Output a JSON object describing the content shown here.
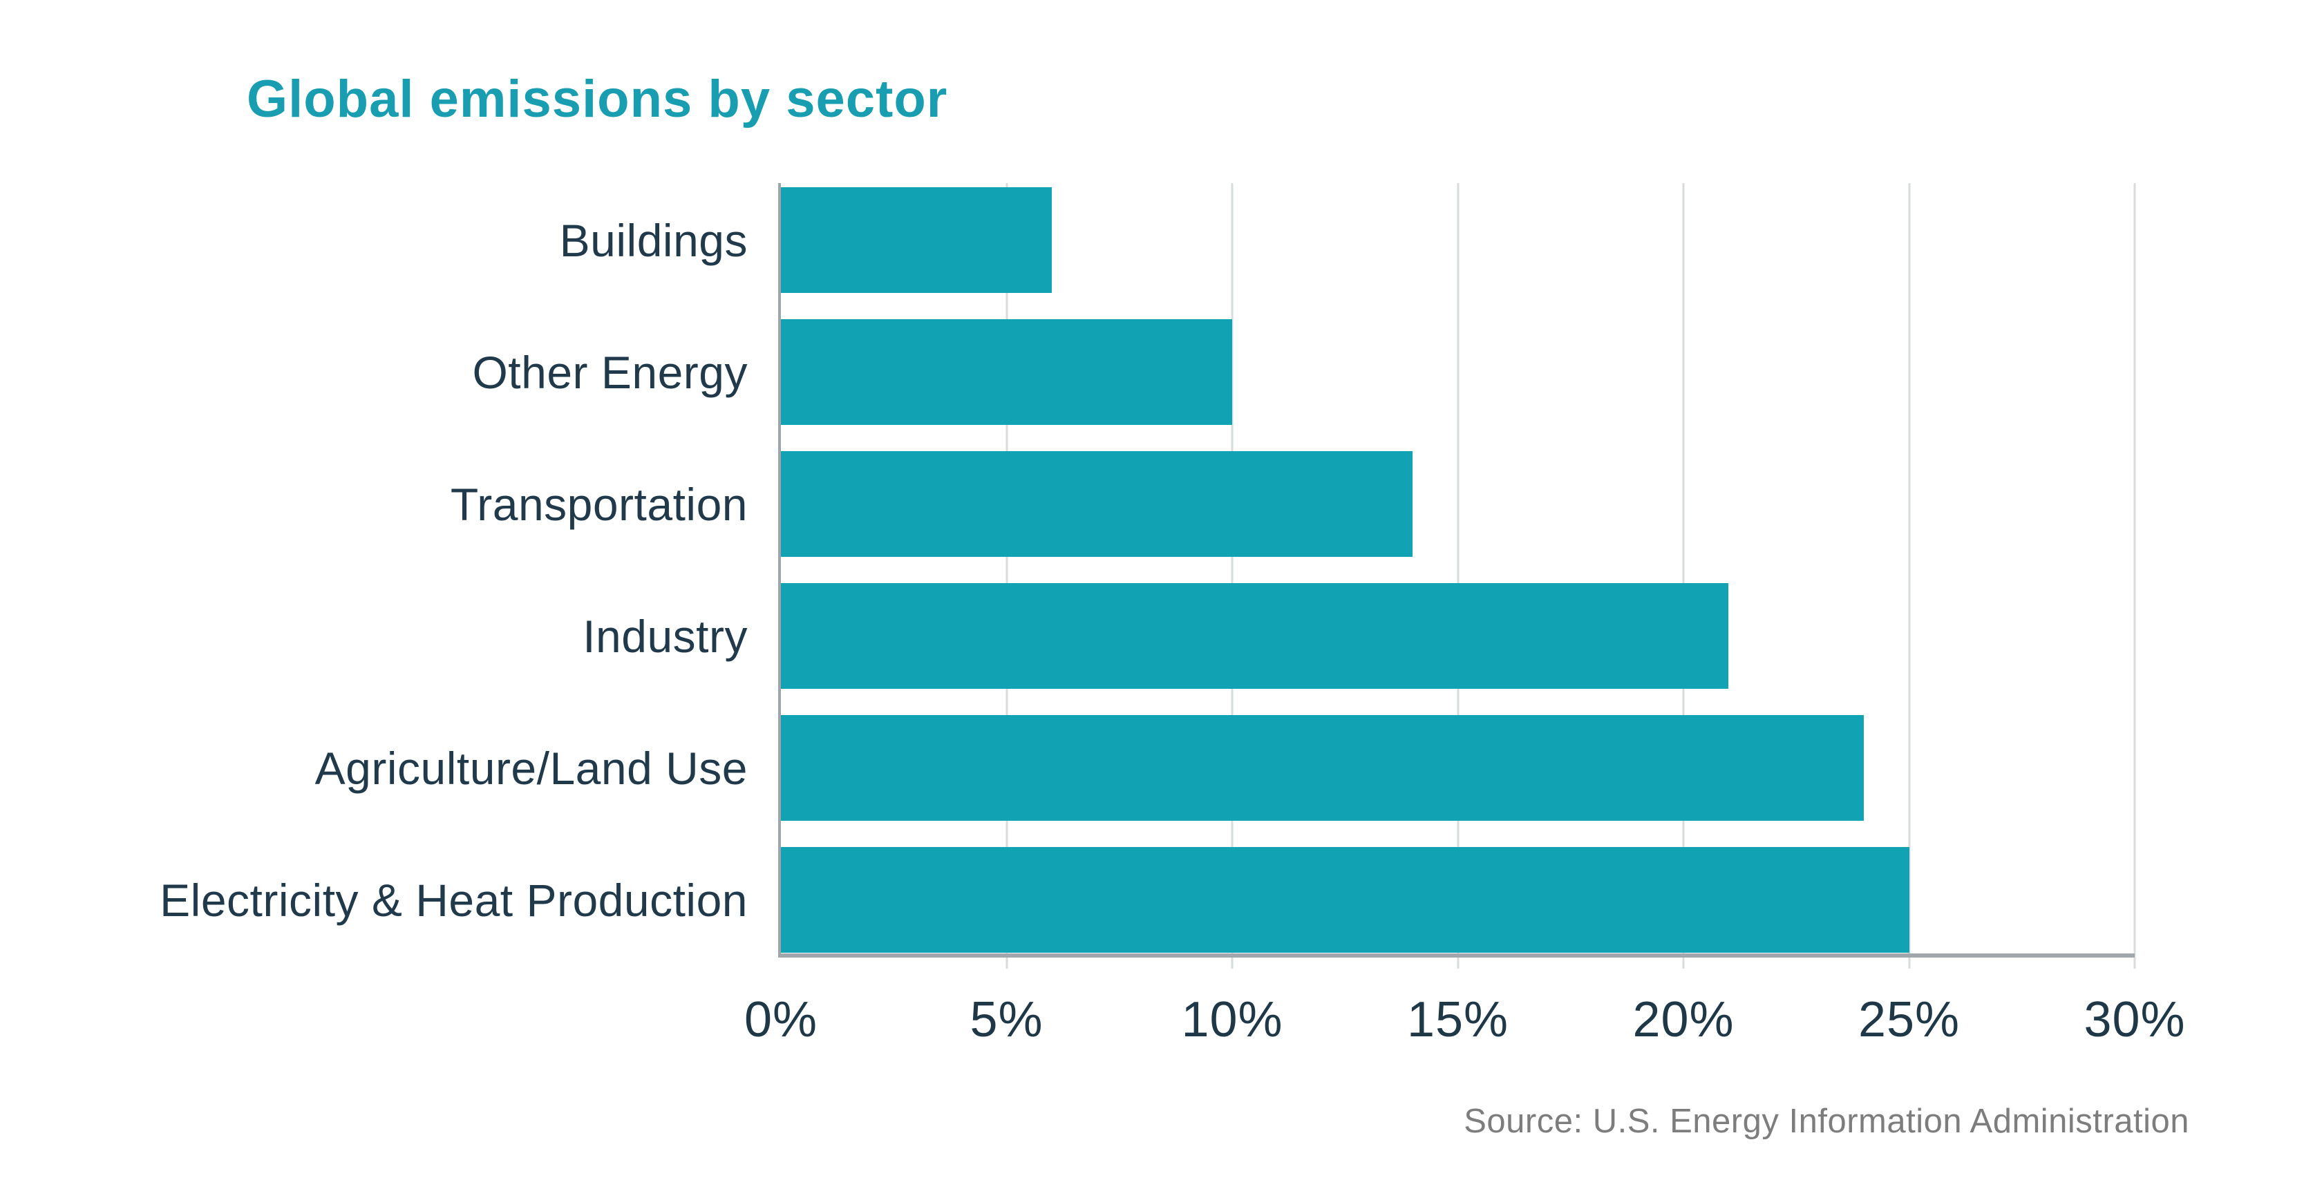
{
  "title": "Global emissions by sector",
  "source": "Source: U.S. Energy Information Administration",
  "colors": {
    "bar_teal": "#11A2B3",
    "title_teal": "#189EB0",
    "label_navy": "#213A4B",
    "tick_navy": "#1E3848",
    "gridline_gray": "#D8DCDE",
    "axis_gray": "#A1A7AB",
    "source_gray": "#7D7D7D",
    "background": "#FFFFFF"
  },
  "chart_data": {
    "type": "bar",
    "orientation": "horizontal",
    "title": "Global emissions by sector",
    "categories": [
      "Buildings",
      "Other Energy",
      "Transportation",
      "Industry",
      "Agriculture/Land Use",
      "Electricity & Heat Production"
    ],
    "values": [
      6,
      10,
      14,
      21,
      24,
      25
    ],
    "unit": "%",
    "xlabel": "",
    "ylabel": "",
    "xlim": [
      0,
      30
    ],
    "xticks": [
      0,
      5,
      10,
      15,
      20,
      25,
      30
    ],
    "xtick_labels": [
      "0%",
      "5%",
      "10%",
      "15%",
      "20%",
      "25%",
      "30%"
    ],
    "grid": true,
    "legend": false,
    "annotation": "Source: U.S. Energy Information Administration"
  }
}
